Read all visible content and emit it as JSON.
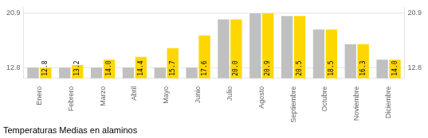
{
  "chart_data": {
    "type": "bar",
    "title": "Temperaturas Medias en alaminos",
    "categories": [
      "Enero",
      "Febrero",
      "Marzo",
      "Abril",
      "Mayo",
      "Junio",
      "Julio",
      "Agosto",
      "Septiembre",
      "Octubre",
      "Noviembre",
      "Diciembre"
    ],
    "series": [
      {
        "color": "#C0C0C0",
        "values": [
          12.8,
          12.8,
          12.8,
          12.8,
          12.8,
          12.8,
          20.0,
          20.9,
          20.5,
          18.5,
          16.3,
          14.0
        ]
      },
      {
        "color": "#FFD700",
        "values": [
          12.8,
          13.2,
          14.0,
          14.4,
          15.7,
          17.6,
          20.0,
          20.9,
          20.5,
          18.5,
          16.3,
          14.0
        ],
        "data_labels": true,
        "value_labels": [
          "12.8",
          "13.2",
          "14.0",
          "14.4",
          "15.7",
          "17.6",
          "20.0",
          "20.9",
          "20.5",
          "18.5",
          "16.3",
          "14.0"
        ]
      }
    ],
    "ylim": [
      11.2,
      21.8
    ],
    "yticks": [
      12.8,
      20.9
    ],
    "y2lim": [
      11.2,
      21.8
    ],
    "y2ticks": [
      12.8,
      20.9
    ],
    "grid": true
  }
}
